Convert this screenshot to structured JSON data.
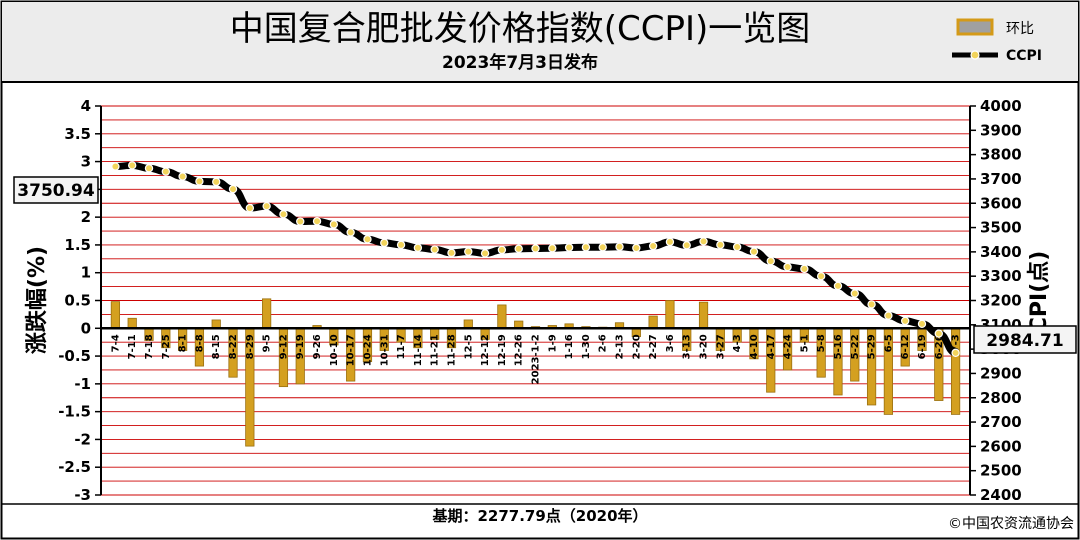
{
  "chart_data": {
    "type": "bar+line",
    "title": "中国复合肥批发价格指数(CCPI)一览图",
    "subtitle": "2023年7月3日发布",
    "left_axis": {
      "label": "涨跌幅(%)",
      "range": [
        -3,
        4
      ],
      "ticks": [
        "4",
        "3.5",
        "3",
        "2.5",
        "2",
        "1.5",
        "1",
        "0.5",
        "0",
        "-0.5",
        "-1",
        "-1.5",
        "-2",
        "-2.5",
        "-3"
      ]
    },
    "right_axis": {
      "label": "CCPI(点)",
      "range": [
        2400,
        4000
      ],
      "ticks": [
        "4000",
        "3900",
        "3800",
        "3700",
        "3600",
        "3500",
        "3400",
        "3300",
        "3200",
        "3100",
        "3000",
        "2900",
        "2800",
        "2700",
        "2600",
        "2500",
        "2400"
      ]
    },
    "categories": [
      "7-4",
      "7-11",
      "7-18",
      "7-25",
      "8-1",
      "8-8",
      "8-15",
      "8-22",
      "8-29",
      "9-5",
      "9-12",
      "9-19",
      "9-26",
      "10-10",
      "10-17",
      "10-24",
      "10-31",
      "11-7",
      "11-14",
      "11-21",
      "11-28",
      "12-5",
      "12-12",
      "12-19",
      "12-26",
      "2023-1-2",
      "1-9",
      "1-16",
      "1-30",
      "2-6",
      "2-13",
      "2-20",
      "2-27",
      "3-6",
      "3-13",
      "3-20",
      "3-27",
      "4-3",
      "4-10",
      "4-17",
      "4-24",
      "5-1",
      "5-8",
      "5-16",
      "5-22",
      "5-29",
      "6-5",
      "6-12",
      "6-19",
      "6-26",
      "7-3"
    ],
    "series": [
      {
        "name": "环比",
        "type": "bar",
        "axis": "left",
        "values": [
          0.48,
          0.18,
          -0.22,
          -0.35,
          -0.4,
          -0.68,
          0.15,
          -0.88,
          -2.12,
          0.53,
          -1.05,
          -1.0,
          0.05,
          -0.3,
          -0.95,
          -0.6,
          -0.4,
          -0.25,
          -0.35,
          -0.2,
          -0.35,
          0.15,
          -0.2,
          0.42,
          0.13,
          0.03,
          0.05,
          0.08,
          0.03,
          0.02,
          0.1,
          -0.15,
          0.22,
          0.5,
          -0.4,
          0.47,
          -0.4,
          -0.25,
          -0.55,
          -1.15,
          -0.75,
          -0.25,
          -0.88,
          -1.2,
          -0.95,
          -1.38,
          -1.55,
          -0.68,
          -0.4,
          -1.3,
          -1.55
        ]
      },
      {
        "name": "CCPI",
        "type": "line",
        "axis": "right",
        "values": [
          3750.94,
          3756,
          3744,
          3730,
          3710,
          3690,
          3688,
          3658,
          3580,
          3588,
          3555,
          3525,
          3526,
          3513,
          3480,
          3452,
          3437,
          3429,
          3417,
          3410,
          3396,
          3401,
          3394,
          3408,
          3413,
          3414,
          3415,
          3418,
          3419,
          3419,
          3421,
          3416,
          3424,
          3441,
          3427,
          3443,
          3429,
          3420,
          3401,
          3362,
          3338,
          3330,
          3300,
          3260,
          3229,
          3184,
          3138,
          3116,
          3104,
          3064,
          2984.71
        ]
      }
    ],
    "legend": {
      "position": "top-right",
      "items": [
        "环比",
        "CCPI"
      ]
    },
    "callouts": {
      "first": "3750.94",
      "last": "2984.71"
    },
    "colors": {
      "bar_fill": "#d4a020",
      "bar_stroke": "#9a7010",
      "line": "#000000",
      "marker": "#f2d45c",
      "grid": "#cc0000",
      "frame": "#000000"
    },
    "grid": true
  },
  "footer": {
    "base_label": "基期：2277.79点（2020年）",
    "copyright": "©中国农资流通协会"
  }
}
